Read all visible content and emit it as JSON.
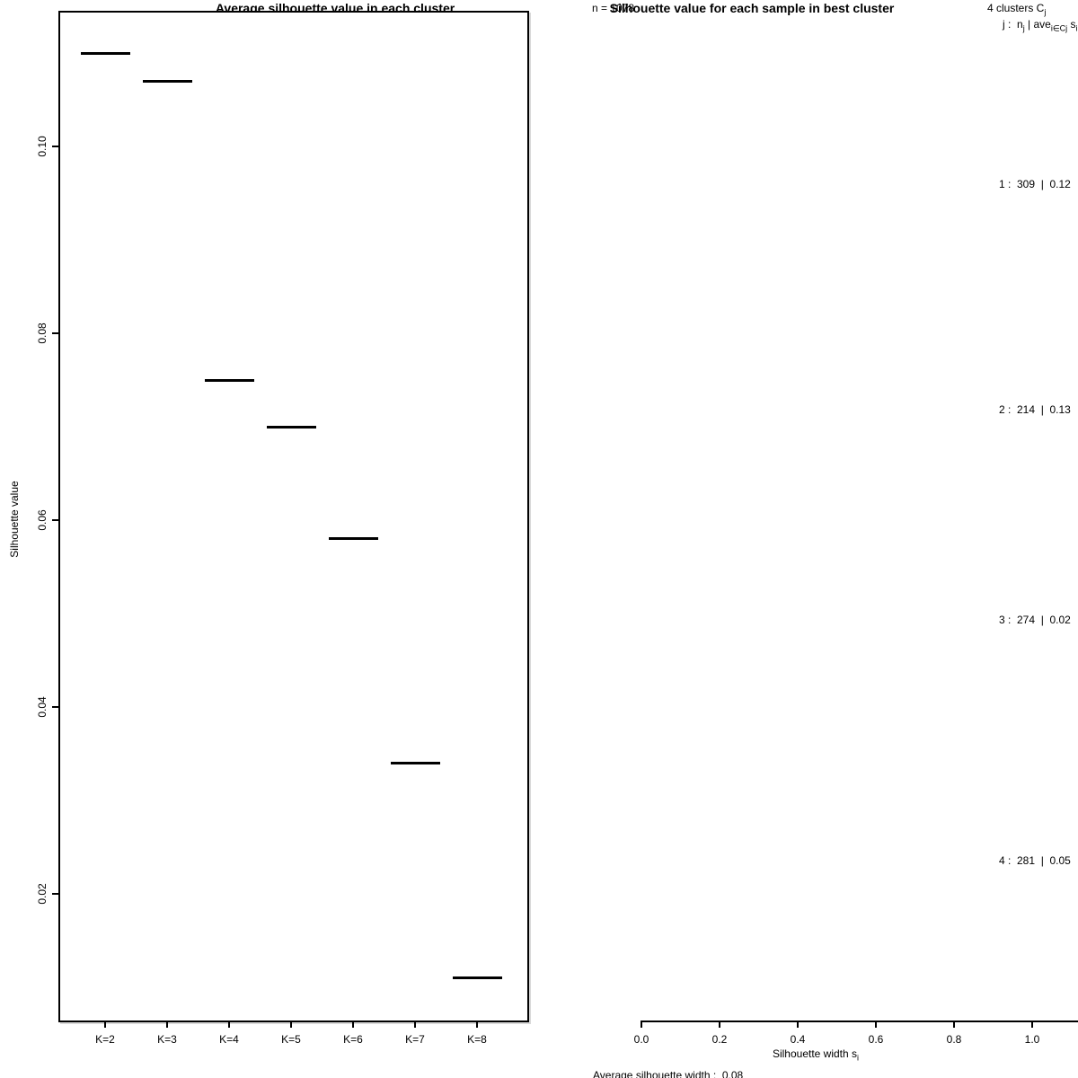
{
  "left_panel": {
    "title": "Average silhouette value in each cluster",
    "ylabel": "Silhouette value",
    "ytick_labels": [
      "0.02",
      "0.04",
      "0.06",
      "0.08",
      "0.10"
    ],
    "xtick_labels": [
      "K=2",
      "K=3",
      "K=4",
      "K=5",
      "K=6",
      "K=7",
      "K=8"
    ]
  },
  "right_panel": {
    "title": "Silhouette value for each sample in best cluster",
    "n_label": "n = 1078",
    "header": {
      "line1_prefix": "4 clusters C",
      "line1_sub": "j",
      "line2_p1": "j :  n",
      "line2_s1": "j",
      "line2_p2": " | ave",
      "line2_s2": "i∈Cj",
      "line2_p3": " s",
      "line2_s3": "i"
    },
    "cluster_labels": [
      "1 :  309  |  0.12",
      "2 :  214  |  0.13",
      "3 :  274  |  0.02",
      "4 :  281  |  0.05"
    ],
    "xtick_labels": [
      "0.0",
      "0.2",
      "0.4",
      "0.6",
      "0.8",
      "1.0"
    ],
    "xlabel_prefix": "Silhouette width s",
    "xlabel_sub": "i",
    "footer": "Average silhouette width :  0.08"
  },
  "chart_data": [
    {
      "type": "scatter",
      "marker": "horizontal-dash",
      "title": "Average silhouette value in each cluster",
      "xlabel": "",
      "ylabel": "Silhouette value",
      "categories": [
        "K=2",
        "K=3",
        "K=4",
        "K=5",
        "K=6",
        "K=7",
        "K=8"
      ],
      "values": [
        0.11,
        0.107,
        0.075,
        0.07,
        0.058,
        0.034,
        0.011
      ],
      "yticks": [
        0.02,
        0.04,
        0.06,
        0.08,
        0.1
      ],
      "ylim": [
        0.005,
        0.115
      ],
      "grid": false,
      "legend": "none"
    },
    {
      "type": "bar",
      "subtype": "silhouette-plot",
      "orientation": "horizontal",
      "title": "Silhouette value for each sample in best cluster",
      "n_total": 1078,
      "n_clusters": 4,
      "clusters": [
        {
          "j": 1,
          "n_j": 309,
          "ave_silhouette": 0.12
        },
        {
          "j": 2,
          "n_j": 214,
          "ave_silhouette": 0.13
        },
        {
          "j": 3,
          "n_j": 274,
          "ave_silhouette": 0.02
        },
        {
          "j": 4,
          "n_j": 281,
          "ave_silhouette": 0.05
        }
      ],
      "average_silhouette_width": 0.08,
      "xlabel": "Silhouette width si",
      "xticks": [
        0.0,
        0.2,
        0.4,
        0.6,
        0.8,
        1.0
      ],
      "xlim": [
        0,
        1
      ],
      "bars_visible": false,
      "grid": false,
      "legend": "none"
    }
  ]
}
